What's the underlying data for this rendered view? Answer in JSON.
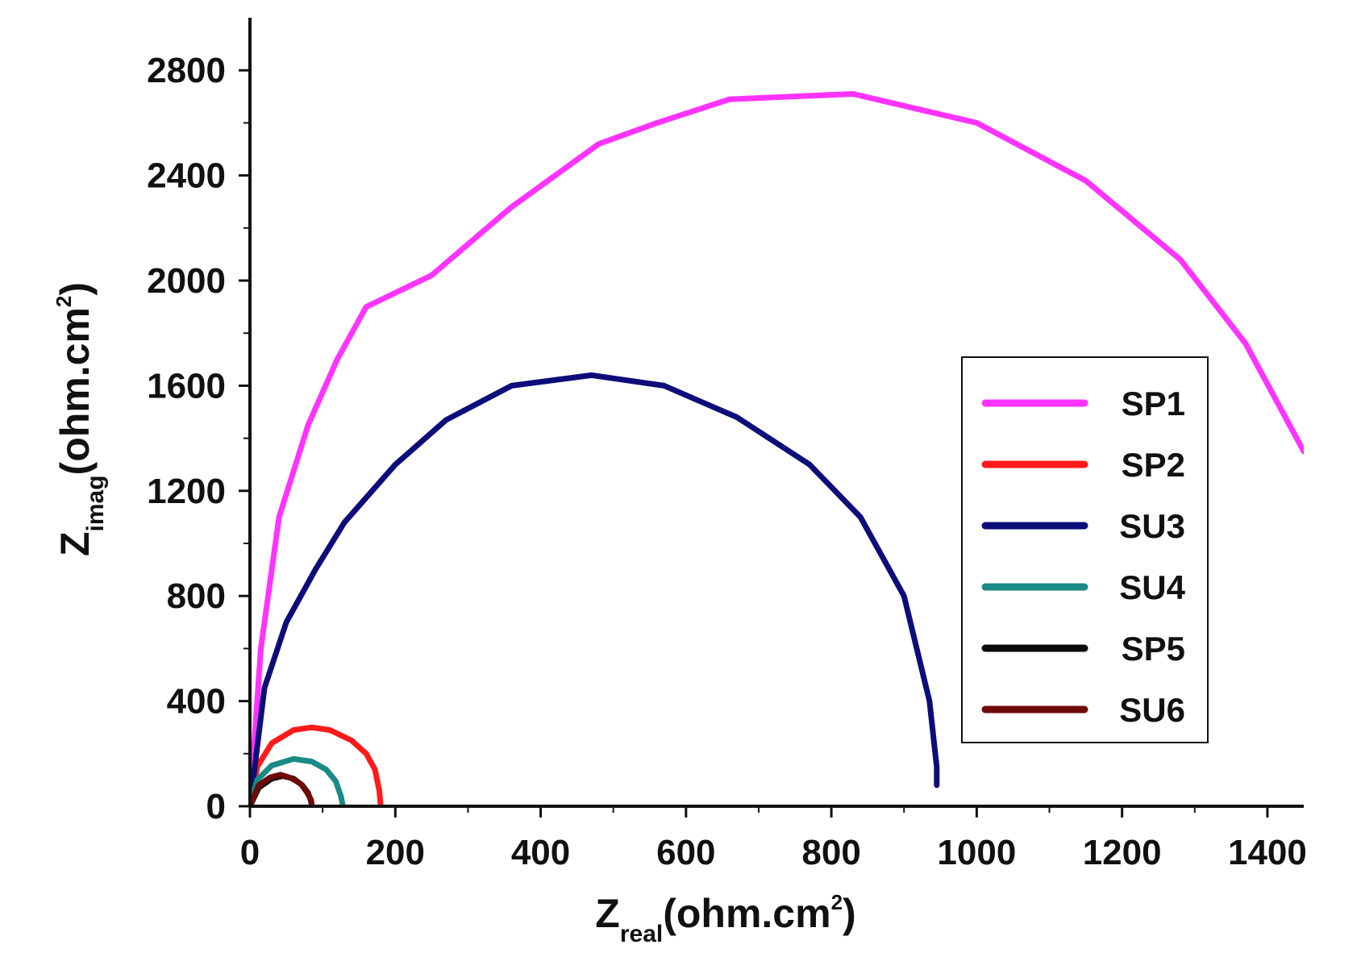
{
  "chart_data": {
    "type": "line",
    "title": "",
    "xlabel": {
      "main": "Z",
      "sub": "real",
      "unit_open": "(ohm.cm",
      "sup": "2",
      "unit_close": ")"
    },
    "ylabel": {
      "main": "Z",
      "sub": "imag",
      "unit_open": "(ohm.cm",
      "sup": "2",
      "unit_close": ")"
    },
    "xlim": [
      0,
      1450
    ],
    "ylim": [
      0,
      3000
    ],
    "xticks": [
      0,
      200,
      400,
      600,
      800,
      1000,
      1200,
      1400
    ],
    "yticks": [
      0,
      400,
      800,
      1200,
      1600,
      2000,
      2400,
      2800
    ],
    "xtick_labels": [
      "0",
      "200",
      "400",
      "600",
      "800",
      "1000",
      "1200",
      "1400"
    ],
    "ytick_labels": [
      "0",
      "400",
      "800",
      "1200",
      "1600",
      "2000",
      "2400",
      "2800"
    ],
    "grid": false,
    "legend_position": "right",
    "series": [
      {
        "name": "SP1",
        "color": "#ff33ff",
        "x": [
          0,
          15,
          40,
          80,
          120,
          160,
          250,
          360,
          480,
          560,
          660,
          830,
          1000,
          1150,
          1280,
          1370,
          1450
        ],
        "y": [
          0,
          600,
          1100,
          1450,
          1700,
          1900,
          2020,
          2280,
          2520,
          2600,
          2690,
          2710,
          2600,
          2380,
          2080,
          1760,
          1350
        ]
      },
      {
        "name": "SP2",
        "color": "#ff1a1a",
        "x": [
          0,
          10,
          30,
          60,
          85,
          110,
          140,
          160,
          172,
          178,
          180
        ],
        "y": [
          0,
          150,
          240,
          290,
          300,
          290,
          250,
          200,
          140,
          60,
          0
        ]
      },
      {
        "name": "SU3",
        "color": "#0d0d7a",
        "x": [
          0,
          20,
          50,
          90,
          130,
          200,
          270,
          360,
          470,
          570,
          670,
          770,
          840,
          900,
          935,
          945,
          945
        ],
        "y": [
          0,
          450,
          700,
          900,
          1080,
          1300,
          1470,
          1600,
          1640,
          1600,
          1480,
          1300,
          1100,
          800,
          400,
          150,
          80
        ]
      },
      {
        "name": "SU4",
        "color": "#1a8a86",
        "x": [
          0,
          10,
          30,
          60,
          85,
          105,
          118,
          125,
          128
        ],
        "y": [
          0,
          100,
          155,
          180,
          170,
          140,
          95,
          40,
          0
        ]
      },
      {
        "name": "SP5",
        "color": "#0a0a0a",
        "x": [
          0,
          12,
          30,
          45,
          60,
          72,
          80,
          84,
          85
        ],
        "y": [
          0,
          70,
          105,
          115,
          105,
          80,
          50,
          20,
          0
        ]
      },
      {
        "name": "SU6",
        "color": "#6e0a0a",
        "x": [
          0,
          12,
          28,
          42,
          56,
          70,
          78,
          84,
          85
        ],
        "y": [
          0,
          80,
          110,
          120,
          108,
          85,
          55,
          25,
          10
        ]
      }
    ]
  }
}
